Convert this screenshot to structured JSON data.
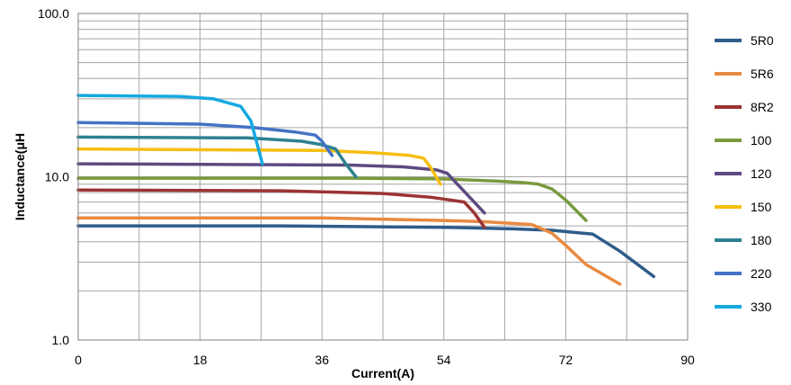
{
  "chart_data": {
    "type": "line",
    "xlabel": "Current(A)",
    "ylabel": "Inductance(μH",
    "xlim": [
      0,
      90
    ],
    "ylim": [
      1.0,
      100.0
    ],
    "yscale": "log",
    "x_ticks": [
      0,
      18,
      36,
      54,
      72,
      90
    ],
    "x_tick_labels": [
      "0",
      "18",
      "36",
      "54",
      "72",
      "90"
    ],
    "y_ticks": [
      1.0,
      10.0,
      100.0
    ],
    "y_tick_labels": [
      "1.0",
      "10.0",
      "100.0"
    ],
    "grid": true,
    "legend_position": "right",
    "series": [
      {
        "name": "5R0",
        "color": "#2E5C8A",
        "points": [
          [
            0,
            5.0
          ],
          [
            30,
            5.0
          ],
          [
            54,
            4.9
          ],
          [
            64,
            4.8
          ],
          [
            70,
            4.7
          ],
          [
            76,
            4.45
          ],
          [
            80,
            3.5
          ],
          [
            85,
            2.45
          ]
        ]
      },
      {
        "name": "5R6",
        "color": "#E98A41",
        "points": [
          [
            0,
            5.6
          ],
          [
            36,
            5.6
          ],
          [
            54,
            5.4
          ],
          [
            60,
            5.3
          ],
          [
            67,
            5.1
          ],
          [
            70,
            4.5
          ],
          [
            72,
            3.8
          ],
          [
            75,
            2.9
          ],
          [
            80,
            2.2
          ]
        ]
      },
      {
        "name": "8R2",
        "color": "#9B3333",
        "points": [
          [
            0,
            8.3
          ],
          [
            30,
            8.2
          ],
          [
            45,
            7.9
          ],
          [
            52,
            7.5
          ],
          [
            57,
            7.0
          ],
          [
            58.5,
            6.0
          ],
          [
            60,
            4.9
          ]
        ]
      },
      {
        "name": "100",
        "color": "#7A9A3F",
        "points": [
          [
            0,
            9.8
          ],
          [
            40,
            9.8
          ],
          [
            54,
            9.7
          ],
          [
            62,
            9.4
          ],
          [
            66,
            9.2
          ],
          [
            68,
            9.0
          ],
          [
            70,
            8.4
          ],
          [
            72,
            7.2
          ],
          [
            75,
            5.4
          ]
        ]
      },
      {
        "name": "120",
        "color": "#5C4A80",
        "points": [
          [
            0,
            12.0
          ],
          [
            40,
            11.8
          ],
          [
            48,
            11.5
          ],
          [
            53,
            11.0
          ],
          [
            54.5,
            10.5
          ],
          [
            56,
            9.0
          ],
          [
            60,
            6.0
          ]
        ]
      },
      {
        "name": "150",
        "color": "#F5BE10",
        "points": [
          [
            0,
            14.8
          ],
          [
            36,
            14.5
          ],
          [
            44,
            14.0
          ],
          [
            49,
            13.5
          ],
          [
            51,
            13.0
          ],
          [
            52,
            11.5
          ],
          [
            53.5,
            9.0
          ]
        ]
      },
      {
        "name": "180",
        "color": "#2D8190",
        "points": [
          [
            0,
            17.5
          ],
          [
            25,
            17.3
          ],
          [
            33,
            16.5
          ],
          [
            36,
            15.7
          ],
          [
            38,
            14.8
          ],
          [
            39.5,
            12.0
          ],
          [
            41,
            10.0
          ]
        ]
      },
      {
        "name": "220",
        "color": "#4472C4",
        "points": [
          [
            0,
            21.5
          ],
          [
            18,
            21.0
          ],
          [
            26,
            20.0
          ],
          [
            32,
            18.8
          ],
          [
            35,
            18.0
          ],
          [
            36,
            16.5
          ],
          [
            37.5,
            13.5
          ]
        ]
      },
      {
        "name": "330",
        "color": "#14A9E0",
        "points": [
          [
            0,
            31.5
          ],
          [
            15,
            31.0
          ],
          [
            20,
            30.0
          ],
          [
            24,
            27.0
          ],
          [
            25.5,
            22.0
          ],
          [
            26.5,
            15.5
          ],
          [
            27.2,
            12.0
          ]
        ]
      }
    ]
  }
}
